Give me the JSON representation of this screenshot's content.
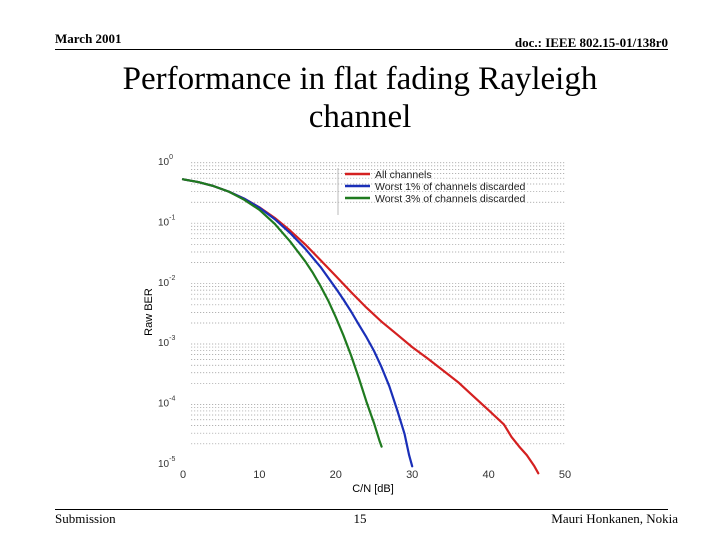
{
  "header": {
    "date": "March 2001",
    "doc_id": "doc.: IEEE 802.15-01/138r0"
  },
  "slide": {
    "title_line1": "Performance in flat fading Rayleigh",
    "title_line2": "channel"
  },
  "footer": {
    "left": "Submission",
    "page": "15",
    "author": "Mauri Honkanen, Nokia"
  },
  "chart_data": {
    "type": "line",
    "xlabel": "C/N [dB]",
    "ylabel": "Raw BER",
    "xlim": [
      0,
      50
    ],
    "x_ticks": [
      "0",
      "10",
      "20",
      "30",
      "40",
      "50"
    ],
    "ylim": [
      1e-05,
      1
    ],
    "y_scale": "log",
    "y_tick_exponents": [
      "0",
      "-1",
      "-2",
      "-3",
      "-4",
      "-5"
    ],
    "y_tick_base": "10",
    "grid": "horizontal minor dotted",
    "legend_position": "top-right",
    "series": [
      {
        "name": "All channels",
        "color": "#d42020",
        "points": [
          [
            0,
            0.48
          ],
          [
            2,
            0.43
          ],
          [
            4,
            0.37
          ],
          [
            6,
            0.3
          ],
          [
            8,
            0.23
          ],
          [
            10,
            0.165
          ],
          [
            12,
            0.11
          ],
          [
            14,
            0.068
          ],
          [
            16,
            0.04
          ],
          [
            18,
            0.022
          ],
          [
            20,
            0.012
          ],
          [
            22,
            0.0065
          ],
          [
            24,
            0.0036
          ],
          [
            26,
            0.0021
          ],
          [
            28,
            0.0013
          ],
          [
            30,
            0.0008
          ],
          [
            32,
            0.00052
          ],
          [
            34,
            0.00033
          ],
          [
            36,
            0.00021
          ],
          [
            38,
            0.000123
          ],
          [
            40,
            7.2e-05
          ],
          [
            42,
            4.2e-05
          ],
          [
            43,
            2.6e-05
          ],
          [
            44,
            1.8e-05
          ],
          [
            45,
            1.3e-05
          ],
          [
            46,
            8.5e-06
          ],
          [
            46.5,
            6.5e-06
          ]
        ]
      },
      {
        "name": "Worst 1% of channels discarded",
        "color": "#1a2fb8",
        "points": [
          [
            0,
            0.48
          ],
          [
            2,
            0.43
          ],
          [
            4,
            0.37
          ],
          [
            6,
            0.3
          ],
          [
            8,
            0.23
          ],
          [
            10,
            0.163
          ],
          [
            12,
            0.105
          ],
          [
            14,
            0.062
          ],
          [
            16,
            0.034
          ],
          [
            18,
            0.017
          ],
          [
            20,
            0.0075
          ],
          [
            21,
            0.0049
          ],
          [
            22,
            0.0031
          ],
          [
            23,
            0.0019
          ],
          [
            24,
            0.00117
          ],
          [
            25,
            0.00069
          ],
          [
            26,
            0.00037
          ],
          [
            27,
            0.00018
          ],
          [
            28,
            7.5e-05
          ],
          [
            29,
            2.9e-05
          ],
          [
            29.6,
            1.3e-05
          ],
          [
            30,
            8.5e-06
          ]
        ]
      },
      {
        "name": "Worst 3% of channels discarded",
        "color": "#1f7a1f",
        "points": [
          [
            0,
            0.48
          ],
          [
            2,
            0.43
          ],
          [
            4,
            0.37
          ],
          [
            6,
            0.3
          ],
          [
            8,
            0.22
          ],
          [
            10,
            0.15
          ],
          [
            12,
            0.088
          ],
          [
            14,
            0.045
          ],
          [
            16,
            0.021
          ],
          [
            17,
            0.0135
          ],
          [
            18,
            0.0082
          ],
          [
            19,
            0.0047
          ],
          [
            20,
            0.0025
          ],
          [
            21,
            0.00125
          ],
          [
            22,
            0.00058
          ],
          [
            23,
            0.00025
          ],
          [
            24,
            0.0001
          ],
          [
            25,
            4.4e-05
          ],
          [
            25.7,
            2.3e-05
          ],
          [
            26,
            1.8e-05
          ]
        ]
      }
    ]
  }
}
